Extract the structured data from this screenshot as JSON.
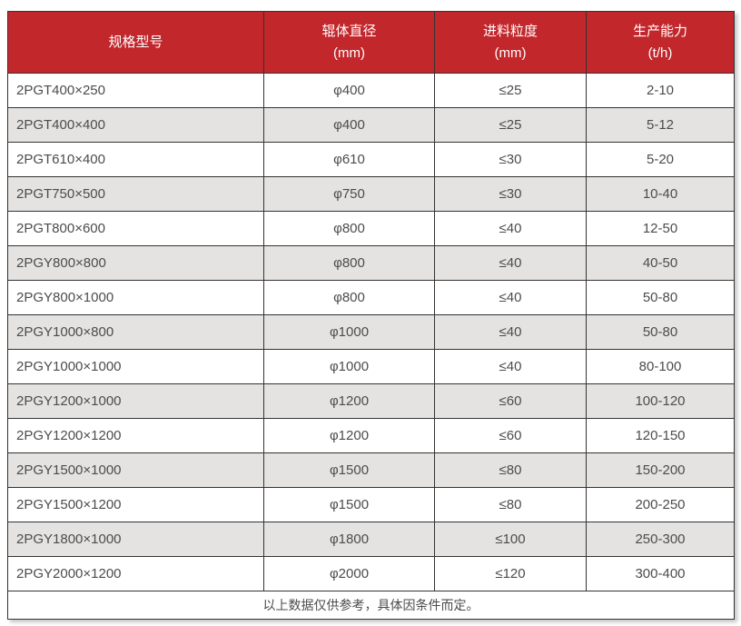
{
  "table": {
    "columns": [
      {
        "label": "规格型号",
        "unit": ""
      },
      {
        "label": "辊体直径",
        "unit": "(mm)"
      },
      {
        "label": "进料粒度",
        "unit": "(mm)"
      },
      {
        "label": "生产能力",
        "unit": "(t/h)"
      }
    ],
    "rows": [
      [
        "2PGT400×250",
        "φ400",
        "≤25",
        "2-10"
      ],
      [
        "2PGT400×400",
        "φ400",
        "≤25",
        "5-12"
      ],
      [
        "2PGT610×400",
        "φ610",
        "≤30",
        "5-20"
      ],
      [
        "2PGT750×500",
        "φ750",
        "≤30",
        "10-40"
      ],
      [
        "2PGT800×600",
        "φ800",
        "≤40",
        "12-50"
      ],
      [
        "2PGY800×800",
        "φ800",
        "≤40",
        "40-50"
      ],
      [
        "2PGY800×1000",
        "φ800",
        "≤40",
        "50-80"
      ],
      [
        "2PGY1000×800",
        "φ1000",
        "≤40",
        "50-80"
      ],
      [
        "2PGY1000×1000",
        "φ1000",
        "≤40",
        "80-100"
      ],
      [
        "2PGY1200×1000",
        "φ1200",
        "≤60",
        "100-120"
      ],
      [
        "2PGY1200×1200",
        "φ1200",
        "≤60",
        "120-150"
      ],
      [
        "2PGY1500×1000",
        "φ1500",
        "≤80",
        "150-200"
      ],
      [
        "2PGY1500×1200",
        "φ1500",
        "≤80",
        "200-250"
      ],
      [
        "2PGY1800×1000",
        "φ1800",
        "≤100",
        "250-300"
      ],
      [
        "2PGY2000×1200",
        "φ2000",
        "≤120",
        "300-400"
      ]
    ],
    "footnote": "以上数据仅供参考，具体因条件而定。"
  },
  "colors": {
    "header_bg": "#c2272c",
    "header_text": "#ffffff",
    "alt_row_bg": "#e4e3e2",
    "border": "#333333",
    "body_text": "#4c4c4c"
  },
  "chart_data": {
    "type": "table",
    "title": "",
    "columns": [
      "规格型号",
      "辊体直径 (mm)",
      "进料粒度 (mm)",
      "生产能力 (t/h)"
    ],
    "rows": [
      [
        "2PGT400×250",
        "φ400",
        "≤25",
        "2-10"
      ],
      [
        "2PGT400×400",
        "φ400",
        "≤25",
        "5-12"
      ],
      [
        "2PGT610×400",
        "φ610",
        "≤30",
        "5-20"
      ],
      [
        "2PGT750×500",
        "φ750",
        "≤30",
        "10-40"
      ],
      [
        "2PGT800×600",
        "φ800",
        "≤40",
        "12-50"
      ],
      [
        "2PGY800×800",
        "φ800",
        "≤40",
        "40-50"
      ],
      [
        "2PGY800×1000",
        "φ800",
        "≤40",
        "50-80"
      ],
      [
        "2PGY1000×800",
        "φ1000",
        "≤40",
        "50-80"
      ],
      [
        "2PGY1000×1000",
        "φ1000",
        "≤40",
        "80-100"
      ],
      [
        "2PGY1200×1000",
        "φ1200",
        "≤60",
        "100-120"
      ],
      [
        "2PGY1200×1200",
        "φ1200",
        "≤60",
        "120-150"
      ],
      [
        "2PGY1500×1000",
        "φ1500",
        "≤80",
        "150-200"
      ],
      [
        "2PGY1500×1200",
        "φ1500",
        "≤80",
        "200-250"
      ],
      [
        "2PGY1800×1000",
        "φ1800",
        "≤100",
        "250-300"
      ],
      [
        "2PGY2000×1200",
        "φ2000",
        "≤120",
        "300-400"
      ]
    ],
    "footnote": "以上数据仅供参考，具体因条件而定。"
  }
}
